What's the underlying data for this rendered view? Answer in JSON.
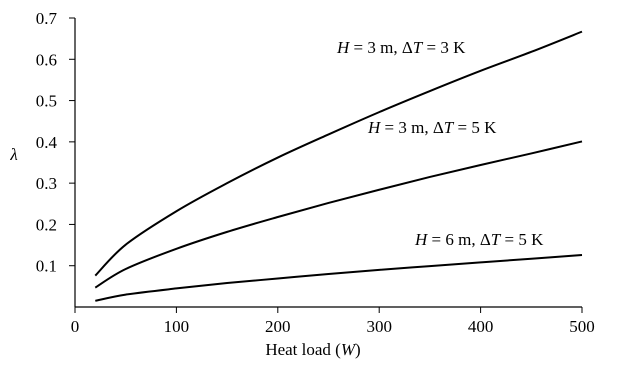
{
  "chart_data": {
    "type": "line",
    "xlabel_main": "Heat load (",
    "xlabel_var": "W",
    "xlabel_end": ")",
    "ylabel": "λ",
    "xlim": [
      0,
      500
    ],
    "ylim": [
      0,
      0.7
    ],
    "x_ticks": [
      {
        "value": 0,
        "label": "0"
      },
      {
        "value": 100,
        "label": "100"
      },
      {
        "value": 200,
        "label": "200"
      },
      {
        "value": 300,
        "label": "300"
      },
      {
        "value": 400,
        "label": "400"
      },
      {
        "value": 500,
        "label": "500"
      }
    ],
    "y_ticks": [
      {
        "value": 0.1,
        "label": "0.1"
      },
      {
        "value": 0.2,
        "label": "0.2"
      },
      {
        "value": 0.3,
        "label": "0.3"
      },
      {
        "value": 0.4,
        "label": "0.4"
      },
      {
        "value": 0.5,
        "label": "0.5"
      },
      {
        "value": 0.6,
        "label": "0.6"
      },
      {
        "value": 0.7,
        "label": "0.7"
      }
    ],
    "series": [
      {
        "label_var": "H",
        "label_mid": " = 3 m,  Δ",
        "label_var2": "T",
        "label_end": " = 3 K",
        "x": [
          20,
          50,
          100,
          150,
          200,
          250,
          300,
          350,
          400,
          450,
          500
        ],
        "y": [
          0.076,
          0.151,
          0.232,
          0.3,
          0.362,
          0.418,
          0.472,
          0.523,
          0.572,
          0.618,
          0.667
        ]
      },
      {
        "label_var": "H",
        "label_mid": " = 3 m, Δ",
        "label_var2": "T",
        "label_end": " = 5 K",
        "x": [
          20,
          50,
          100,
          150,
          200,
          250,
          300,
          350,
          400,
          450,
          500
        ],
        "y": [
          0.047,
          0.092,
          0.141,
          0.182,
          0.218,
          0.252,
          0.284,
          0.315,
          0.344,
          0.372,
          0.401
        ]
      },
      {
        "label_var": "H",
        "label_mid": " = 6 m, Δ",
        "label_var2": "T",
        "label_end": " = 5 K",
        "x": [
          20,
          50,
          100,
          150,
          200,
          250,
          300,
          350,
          400,
          450,
          500
        ],
        "y": [
          0.015,
          0.03,
          0.045,
          0.058,
          0.069,
          0.08,
          0.09,
          0.099,
          0.108,
          0.117,
          0.126
        ]
      }
    ]
  }
}
